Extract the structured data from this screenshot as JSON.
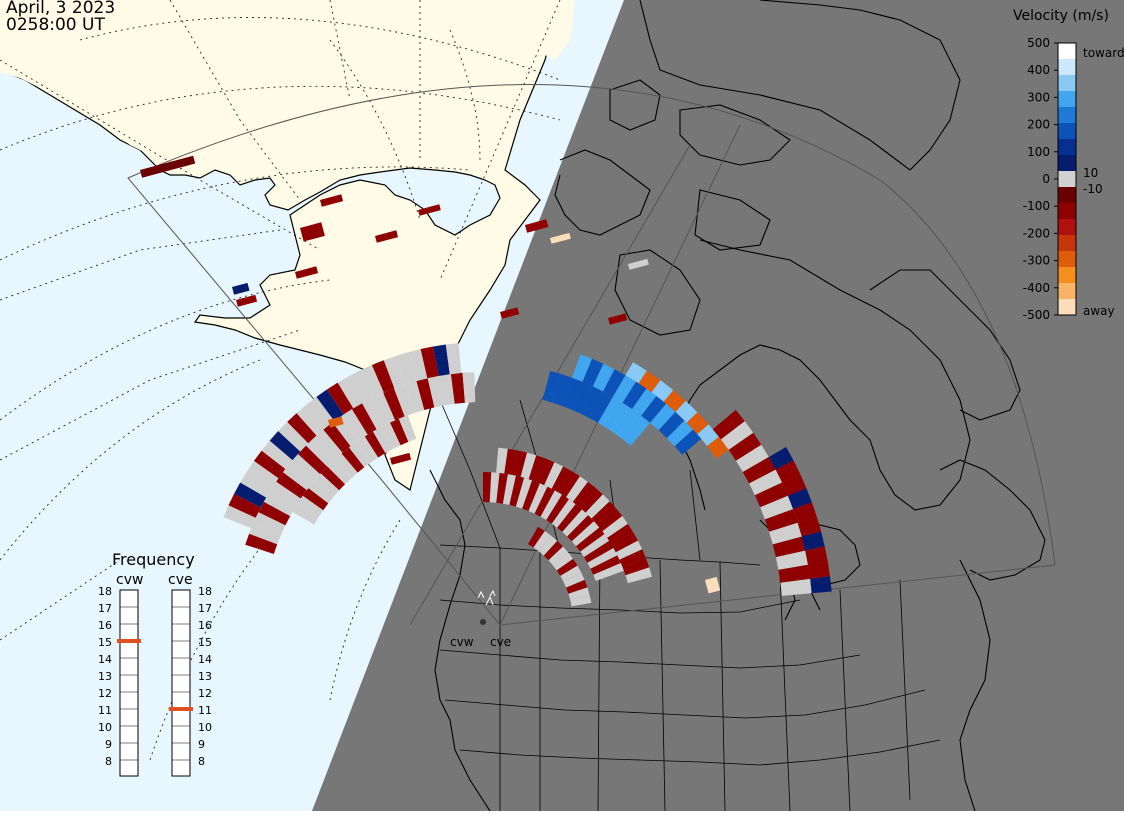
{
  "header": {
    "date": "April, 3 2023",
    "time": "0258:00 UT"
  },
  "velocity_scale": {
    "title": "Velocity (m/s)",
    "ticks": [
      "500",
      "400",
      "300",
      "200",
      "100",
      "0",
      "-100",
      "-200",
      "-300",
      "-400",
      "-500"
    ],
    "toward_label": "toward",
    "away_label": "away",
    "threshold_pos_label": "10",
    "threshold_neg_label": "-10",
    "colors": [
      "#ffffff",
      "#cde8fa",
      "#89c9f4",
      "#3fa6ef",
      "#1e7ad6",
      "#0c52b8",
      "#062f8f",
      "#061c6e",
      "#d0d0d0",
      "#6b0000",
      "#8f0000",
      "#b01010",
      "#c7360b",
      "#df5c0b",
      "#f48f1e",
      "#f9b366",
      "#fbdcbb"
    ]
  },
  "frequency_panel": {
    "title": "Frequency",
    "radars": [
      {
        "name": "cvw",
        "frequency_mhz": 15
      },
      {
        "name": "cve",
        "frequency_mhz": 11
      }
    ],
    "scale_labels": [
      "18",
      "17",
      "16",
      "15",
      "14",
      "13",
      "12",
      "11",
      "10",
      "9",
      "8"
    ]
  },
  "radar_sites": [
    "cvw",
    "cve"
  ],
  "map": {
    "ocean_color": "#e8f6ff",
    "land_color": "#fffbe6",
    "night_color": "#777777",
    "gate_gray": "#cfcfcf",
    "marker_color": "#e05020"
  }
}
